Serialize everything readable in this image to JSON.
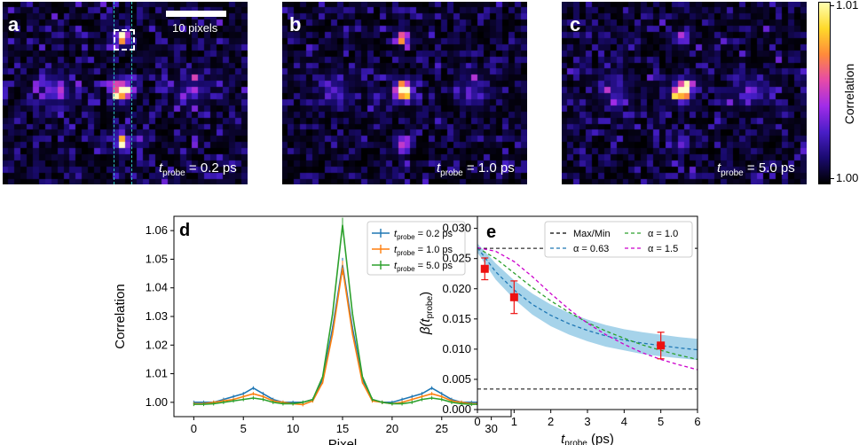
{
  "panels": {
    "a": {
      "label": "a",
      "t_value": "= 0.2 ps"
    },
    "b": {
      "label": "b",
      "t_value": "= 1.0 ps"
    },
    "c": {
      "label": "c",
      "t_value": "= 5.0 ps"
    },
    "t_italic": "t",
    "t_sub": "probe",
    "scalebar_label": "10 pixels"
  },
  "colorbar": {
    "label": "Correlation",
    "ticks": [
      "1.01",
      "1.00"
    ],
    "colors": [
      "#ffffb0",
      "#ffd92a",
      "#ff8a3a",
      "#e64aa8",
      "#a12ce8",
      "#4a1ec8",
      "#1a0a70",
      "#000000"
    ]
  },
  "chart_data": [
    {
      "id": "d",
      "type": "line",
      "panel_label": "d",
      "xlabel": "Pixel",
      "ylabel": "Correlation",
      "xlim": [
        -2,
        32
      ],
      "ylim": [
        0.995,
        1.065
      ],
      "xticks": [
        "0",
        "5",
        "10",
        "15",
        "20",
        "25",
        "30"
      ],
      "yticks": [
        "1.00",
        "1.01",
        "1.02",
        "1.03",
        "1.04",
        "1.05",
        "1.06"
      ],
      "x": [
        0,
        1,
        2,
        3,
        4,
        5,
        6,
        7,
        8,
        9,
        10,
        11,
        12,
        13,
        14,
        15,
        16,
        17,
        18,
        19,
        20,
        21,
        22,
        23,
        24,
        25,
        26,
        27,
        28,
        29,
        30
      ],
      "series": [
        {
          "name": "= 0.2 ps",
          "color": "#1f77b4",
          "values": [
            1.0,
            1.0,
            1.0,
            1.001,
            1.002,
            1.003,
            1.005,
            1.003,
            1.001,
            1.0,
            1.0,
            1.0,
            1.001,
            1.008,
            1.026,
            1.048,
            1.026,
            1.008,
            1.001,
            1.0,
            1.0,
            1.001,
            1.002,
            1.003,
            1.005,
            1.003,
            1.001,
            1.0,
            1.0,
            1.0,
            1.0
          ]
        },
        {
          "name": "= 1.0 ps",
          "color": "#ff7f0e",
          "values": [
            0.9995,
            0.9995,
            1.0,
            1.0005,
            1.001,
            1.002,
            1.003,
            1.002,
            1.0005,
            1.0,
            0.9995,
            0.9992,
            1.0005,
            1.007,
            1.024,
            1.047,
            1.024,
            1.007,
            1.0005,
            1.0,
            0.9995,
            1.0,
            1.001,
            1.002,
            1.003,
            1.002,
            1.0005,
            1.0,
            0.9995,
            0.9995,
            0.9995
          ]
        },
        {
          "name": "= 5.0 ps",
          "color": "#2ca02c",
          "values": [
            0.9993,
            0.9993,
            0.9995,
            1.0,
            1.0005,
            1.001,
            1.0015,
            1.001,
            1.0,
            0.9995,
            0.9995,
            1.0,
            1.001,
            1.009,
            1.031,
            1.062,
            1.031,
            1.009,
            1.001,
            1.0,
            0.9995,
            0.9995,
            1.0,
            1.001,
            1.0015,
            1.001,
            1.0,
            0.9995,
            0.9993,
            0.9993,
            0.9993
          ]
        }
      ],
      "legend": {
        "t_italic": "t",
        "t_sub": "probe"
      }
    },
    {
      "id": "e",
      "type": "line",
      "panel_label": "e",
      "xlabel_italic": "t",
      "xlabel_sub": "probe",
      "xlabel_rest": "(ps)",
      "ylabel_main": "β(",
      "ylabel_t": "t",
      "ylabel_sub": "probe",
      "ylabel_close": ")",
      "xlim": [
        0,
        6
      ],
      "ylim": [
        0,
        0.032
      ],
      "xticks": [
        "0",
        "1",
        "2",
        "3",
        "4",
        "5",
        "6"
      ],
      "yticks": [
        "0.000",
        "0.005",
        "0.010",
        "0.015",
        "0.020",
        "0.025",
        "0.030"
      ],
      "max_line": 0.0267,
      "min_line": 0.0034,
      "band_x": [
        0,
        0.5,
        1,
        1.5,
        2,
        2.5,
        3,
        3.5,
        4,
        4.5,
        5,
        5.5,
        6
      ],
      "band_upper": [
        0.0275,
        0.0242,
        0.0214,
        0.0192,
        0.0174,
        0.016,
        0.0149,
        0.014,
        0.0133,
        0.0128,
        0.0124,
        0.012,
        0.0117
      ],
      "band_lower": [
        0.026,
        0.0215,
        0.0183,
        0.0157,
        0.0138,
        0.0124,
        0.0113,
        0.0104,
        0.0098,
        0.0092,
        0.0088,
        0.0085,
        0.0082
      ],
      "curves": [
        {
          "name": "α = 0.63",
          "color": "#1f77b4",
          "x": [
            0,
            0.5,
            1,
            1.5,
            2,
            2.5,
            3,
            3.5,
            4,
            4.5,
            5,
            5.5,
            6
          ],
          "y": [
            0.0268,
            0.0228,
            0.0198,
            0.0174,
            0.0156,
            0.0142,
            0.0131,
            0.0122,
            0.0115,
            0.011,
            0.0106,
            0.0102,
            0.0099
          ]
        },
        {
          "name": "α = 1.0",
          "color": "#2ca02c",
          "x": [
            0,
            0.5,
            1,
            1.5,
            2,
            2.5,
            3,
            3.5,
            4,
            4.5,
            5,
            5.5,
            6
          ],
          "y": [
            0.0268,
            0.025,
            0.0226,
            0.0202,
            0.018,
            0.0161,
            0.0144,
            0.013,
            0.0118,
            0.0107,
            0.0098,
            0.009,
            0.0083
          ]
        },
        {
          "name": "α = 1.5",
          "color": "#cc00cc",
          "x": [
            0,
            0.5,
            1,
            1.5,
            2,
            2.5,
            3,
            3.5,
            4,
            4.5,
            5,
            5.5,
            6
          ],
          "y": [
            0.0268,
            0.0262,
            0.0245,
            0.022,
            0.0192,
            0.0166,
            0.0143,
            0.0124,
            0.0108,
            0.0094,
            0.0083,
            0.0074,
            0.0066
          ]
        }
      ],
      "points": {
        "x": [
          0.2,
          1.0,
          5.0
        ],
        "y": [
          0.0233,
          0.0186,
          0.0106
        ],
        "err": [
          0.0018,
          0.0027,
          0.0022
        ],
        "color": "#ee1111"
      },
      "legend_maxmin": "Max/Min"
    }
  ]
}
